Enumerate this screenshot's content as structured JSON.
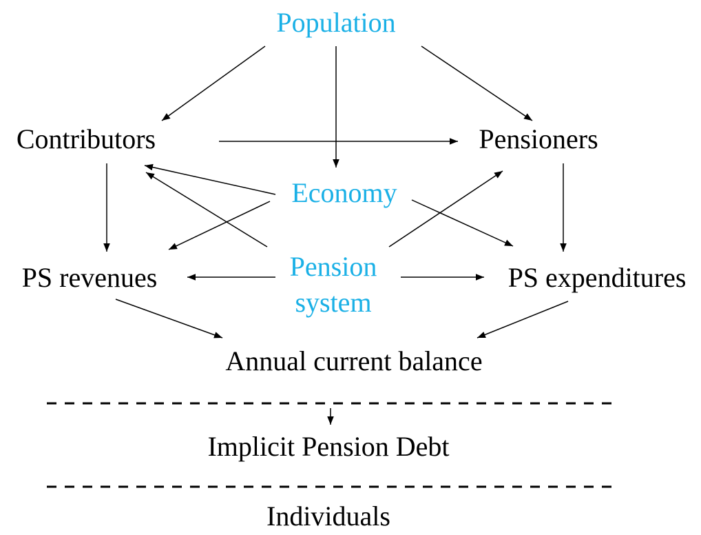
{
  "nodes": [
    {
      "id": "population",
      "label": "Population"
    },
    {
      "id": "contributors",
      "label": "Contributors"
    },
    {
      "id": "pensioners",
      "label": "Pensioners"
    },
    {
      "id": "economy",
      "label": "Economy"
    },
    {
      "id": "ps_revenues",
      "label": "PS revenues"
    },
    {
      "id": "pension_system",
      "label": [
        "Pension",
        "system"
      ]
    },
    {
      "id": "ps_expenditures",
      "label": "PS expenditures"
    },
    {
      "id": "annual_balance",
      "label": "Annual current balance"
    },
    {
      "id": "ipd",
      "label": "Implicit Pension Debt"
    },
    {
      "id": "individuals",
      "label": "Individuals"
    }
  ]
}
